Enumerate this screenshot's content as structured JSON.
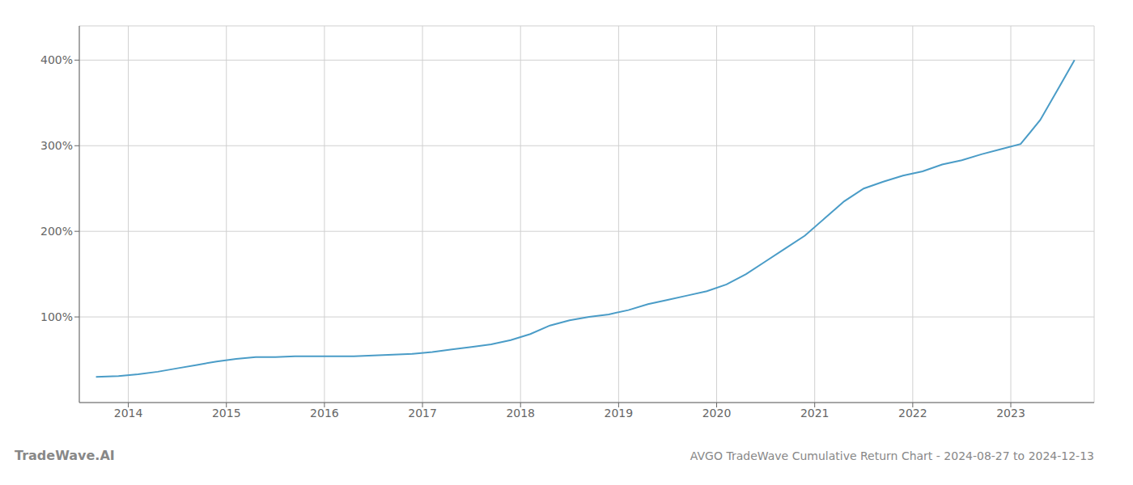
{
  "chart_data": {
    "type": "line",
    "title": "AVGO TradeWave Cumulative Return Chart - 2024-08-27 to 2024-12-13",
    "annotations": [
      "TradeWave.AI"
    ],
    "color": "#4a9cc7",
    "grid": true,
    "x": [
      2013.67,
      2013.9,
      2014.1,
      2014.3,
      2014.5,
      2014.7,
      2014.9,
      2015.1,
      2015.3,
      2015.5,
      2015.7,
      2015.9,
      2016.1,
      2016.3,
      2016.5,
      2016.7,
      2016.9,
      2017.1,
      2017.3,
      2017.5,
      2017.7,
      2017.9,
      2018.1,
      2018.3,
      2018.5,
      2018.7,
      2018.9,
      2019.1,
      2019.3,
      2019.5,
      2019.7,
      2019.9,
      2020.1,
      2020.3,
      2020.5,
      2020.7,
      2020.9,
      2021.1,
      2021.3,
      2021.5,
      2021.7,
      2021.9,
      2022.1,
      2022.3,
      2022.5,
      2022.7,
      2022.9,
      2023.1,
      2023.3,
      2023.5,
      2023.65
    ],
    "values": [
      30,
      31,
      33,
      36,
      40,
      44,
      48,
      51,
      53,
      53,
      54,
      54,
      54,
      54,
      55,
      56,
      57,
      59,
      62,
      65,
      68,
      73,
      80,
      90,
      96,
      100,
      103,
      108,
      115,
      120,
      125,
      130,
      138,
      150,
      165,
      180,
      195,
      215,
      235,
      250,
      258,
      265,
      270,
      278,
      283,
      290,
      296,
      302,
      330,
      370,
      400
    ],
    "xlim": [
      2013.5,
      2023.85
    ],
    "xticks": [
      2014,
      2015,
      2016,
      2017,
      2018,
      2019,
      2020,
      2021,
      2022,
      2023
    ],
    "ylim": [
      0,
      440
    ],
    "yticks": [
      {
        "value": 100,
        "label": "100%"
      },
      {
        "value": 200,
        "label": "200%"
      },
      {
        "value": 300,
        "label": "300%"
      },
      {
        "value": 400,
        "label": "400%"
      }
    ]
  }
}
